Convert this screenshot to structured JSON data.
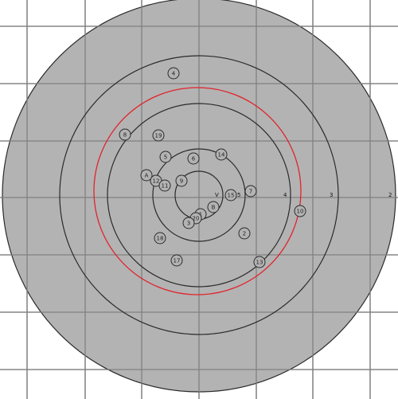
{
  "colors": {
    "background": "#ffffff",
    "target_fill": "#b3b3b3",
    "grid_line": "#808080",
    "ring_line": "#2a2a2a",
    "group_circle": "#e0242c",
    "shot_stroke": "#2a2a2a"
  },
  "ring_labels": [
    {
      "id": "ring-label-2",
      "text": "2"
    },
    {
      "id": "ring-label-3",
      "text": "3"
    },
    {
      "id": "ring-label-4",
      "text": "4"
    },
    {
      "id": "ring-label-5",
      "text": "5"
    },
    {
      "id": "ring-label-v",
      "text": "V"
    }
  ],
  "shots": [
    {
      "label": "4"
    },
    {
      "label": "8"
    },
    {
      "label": "19"
    },
    {
      "label": "5"
    },
    {
      "label": "6"
    },
    {
      "label": "14"
    },
    {
      "label": "A"
    },
    {
      "label": "12"
    },
    {
      "label": "11"
    },
    {
      "label": "9"
    },
    {
      "label": "15"
    },
    {
      "label": "7"
    },
    {
      "label": "B"
    },
    {
      "label": "1"
    },
    {
      "label": "20"
    },
    {
      "label": "3"
    },
    {
      "label": "18"
    },
    {
      "label": "2"
    },
    {
      "label": "17"
    },
    {
      "label": "13"
    },
    {
      "label": "10"
    }
  ]
}
